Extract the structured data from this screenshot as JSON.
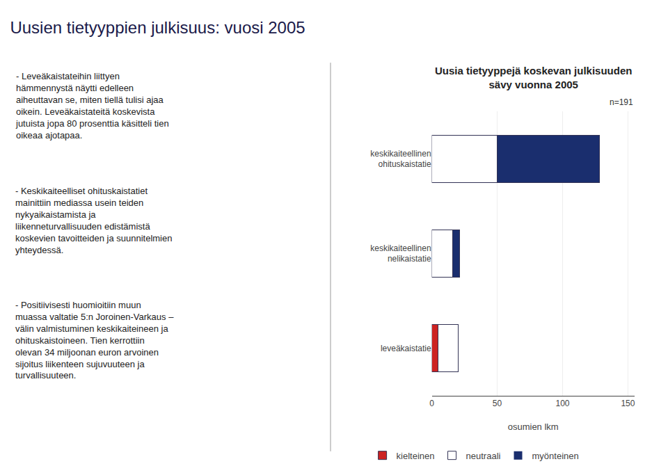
{
  "chart_data": {
    "type": "bar",
    "orientation": "horizontal",
    "stacked": true,
    "title": "Uusien tietyyppien julkisuus: vuosi 2005",
    "subtitle": "Uusia tietyyppejä koskevan julkisuuden\nsävy vuonna 2005",
    "xlabel": "osumien lkm",
    "annotations": [
      "n=191",
      "- Leveäkaistateihin liittyen\nhämmennystä näytti edelleen\naiheuttavan se, miten tiellä tulisi ajaa\noikein. Leveäkaistateitä koskevista\njutuista jopa 80 prosenttia käsitteli tien\noikeaa ajotapaa.",
      "- Keskikaiteelliset ohituskaistatiet\nmainittiin mediassa usein teiden\nnykyaikaistamista ja\nliikenneturvallisuuden edistämistä\nkoskevien tavoitteiden ja suunnitelmien\nyhteydessä.",
      "- Positiivisesti huomioitiin muun\nmuassa valtatie 5:n Joroinen-Varkaus –\nvälin valmistuminen keskikaiteineen ja\nohituskaistoineen. Tien kerrottiin\nolevan 34 miljoonan euron arvoinen\nsijoitus liikenteen sujuvuuteen ja\nturvallisuuteen."
    ],
    "categories": [
      "leveäkaistatie",
      "keskikaiteellinen\nnelikaistatie",
      "keskikaiteellinen\nohituskaistatie"
    ],
    "series": [
      {
        "name": "kielteinen",
        "color": "#cc2222",
        "values": [
          5,
          0,
          0
        ]
      },
      {
        "name": "neutraali",
        "color": "#ffffff",
        "values": [
          15,
          16,
          50
        ]
      },
      {
        "name": "myönteinen",
        "color": "#1a2e6e",
        "values": [
          0,
          5,
          78
        ]
      }
    ],
    "xlim": [
      0,
      155
    ],
    "xticks": [
      0,
      50,
      100,
      150
    ],
    "grid": true,
    "legend": "bottom"
  }
}
